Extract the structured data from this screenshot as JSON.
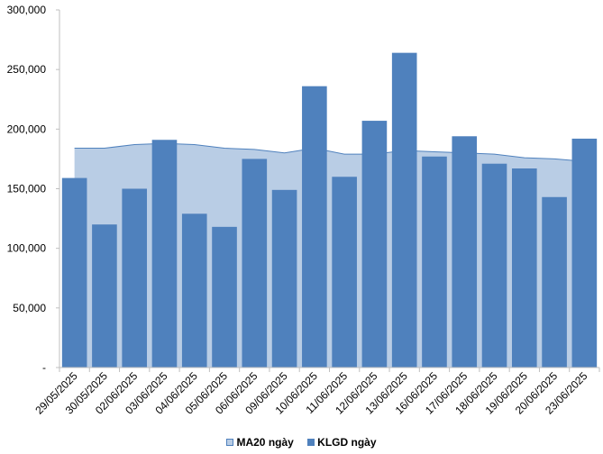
{
  "chart_data": {
    "type": "bar",
    "categories": [
      "29/05/2025",
      "30/05/2025",
      "02/06/2025",
      "03/06/2025",
      "04/06/2025",
      "05/06/2025",
      "06/06/2025",
      "09/06/2025",
      "10/06/2025",
      "11/06/2025",
      "12/06/2025",
      "13/06/2025",
      "16/06/2025",
      "17/06/2025",
      "18/06/2025",
      "19/06/2025",
      "20/06/2025",
      "23/06/2025"
    ],
    "series": [
      {
        "name": "MA20 ngày",
        "type": "area",
        "values": [
          184000,
          184000,
          187000,
          188000,
          187000,
          184000,
          183000,
          180000,
          184000,
          179000,
          179000,
          182000,
          181000,
          180000,
          179000,
          176000,
          175000,
          173000
        ]
      },
      {
        "name": "KLGD ngày",
        "type": "bar",
        "values": [
          159000,
          120000,
          150000,
          191000,
          129000,
          118000,
          175000,
          149000,
          236000,
          160000,
          207000,
          264000,
          177000,
          194000,
          171000,
          167000,
          143000,
          192000
        ]
      }
    ],
    "ylim": [
      0,
      300000
    ],
    "yticks": [
      0,
      50000,
      100000,
      150000,
      200000,
      250000,
      300000
    ],
    "ytick_labels": [
      "-",
      "50,000",
      "100,000",
      "150,000",
      "200,000",
      "250,000",
      "300,000"
    ],
    "grid": false,
    "legend_position": "bottom",
    "colors": {
      "bar": "#4f81bd",
      "area_fill": "#b9cde5",
      "area_line": "#4f81bd",
      "axis": "#bfbfbf"
    }
  }
}
